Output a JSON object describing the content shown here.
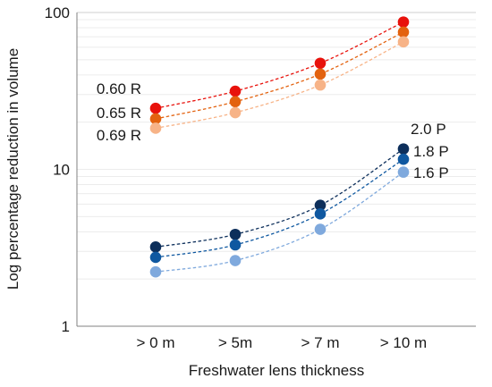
{
  "chart_data": {
    "type": "line",
    "title": "",
    "xlabel": "Freshwater lens thickness",
    "ylabel": "Log percentage reduction in volume",
    "categories": [
      "> 0 m",
      "> 5m",
      "> 7 m",
      "> 10 m"
    ],
    "y_scale": "log",
    "ylim": [
      1,
      100
    ],
    "y_ticks": [
      "1",
      "10",
      "100"
    ],
    "grid": true,
    "series": [
      {
        "name": "0.60 R",
        "color": "#e8120c",
        "values": [
          24.5,
          31.5,
          47.5,
          87
        ]
      },
      {
        "name": "0.65 R",
        "color": "#e3620f",
        "values": [
          21,
          27,
          40.5,
          75
        ]
      },
      {
        "name": "0.69 R",
        "color": "#f7b387",
        "values": [
          18.3,
          23,
          34.5,
          65
        ]
      },
      {
        "name": "2.0 P",
        "color": "#0d2f5b",
        "values": [
          3.2,
          3.85,
          5.9,
          13.5
        ]
      },
      {
        "name": "1.8 P",
        "color": "#0f58a0",
        "values": [
          2.75,
          3.3,
          5.2,
          11.6
        ]
      },
      {
        "name": "1.6 P",
        "color": "#7fa9dd",
        "values": [
          2.22,
          2.62,
          4.15,
          9.6
        ]
      }
    ]
  }
}
